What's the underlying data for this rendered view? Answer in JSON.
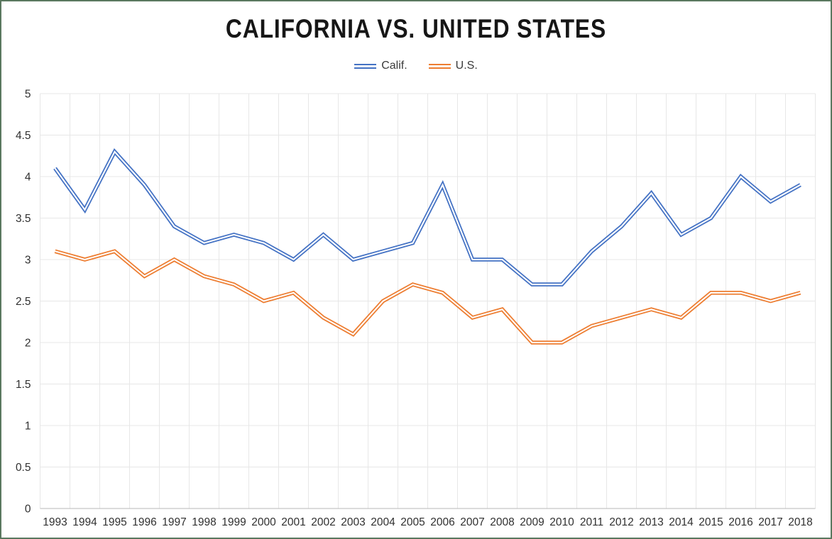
{
  "chart_data": {
    "type": "line",
    "title": "CALIFORNIA VS. UNITED STATES",
    "xlabel": "",
    "ylabel": "",
    "categories": [
      1993,
      1994,
      1995,
      1996,
      1997,
      1998,
      1999,
      2000,
      2001,
      2002,
      2003,
      2004,
      2005,
      2006,
      2007,
      2008,
      2009,
      2010,
      2011,
      2012,
      2013,
      2014,
      2015,
      2016,
      2017,
      2018
    ],
    "series": [
      {
        "name": "Calif.",
        "color": "#4472C4",
        "values": [
          4.1,
          3.6,
          4.3,
          3.9,
          3.4,
          3.2,
          3.3,
          3.2,
          3.0,
          3.3,
          3.0,
          3.1,
          3.2,
          3.9,
          3.0,
          3.0,
          2.7,
          2.7,
          3.1,
          3.4,
          3.8,
          3.3,
          3.5,
          4.0,
          3.7,
          3.9
        ]
      },
      {
        "name": "U.S.",
        "color": "#ED7D31",
        "values": [
          3.1,
          3.0,
          3.1,
          2.8,
          3.0,
          2.8,
          2.7,
          2.5,
          2.6,
          2.3,
          2.1,
          2.5,
          2.7,
          2.6,
          2.3,
          2.4,
          2.0,
          2.0,
          2.2,
          2.3,
          2.4,
          2.3,
          2.6,
          2.6,
          2.5,
          2.6
        ]
      }
    ],
    "ylim": [
      0,
      5
    ],
    "y_tick_step": 0.5,
    "y_tick_labels": [
      "0",
      "0.5",
      "1",
      "1.5",
      "2",
      "2.5",
      "3",
      "3.5",
      "4",
      "4.5",
      "5"
    ],
    "grid": "both",
    "legend_position": "top",
    "line_style": "double"
  }
}
